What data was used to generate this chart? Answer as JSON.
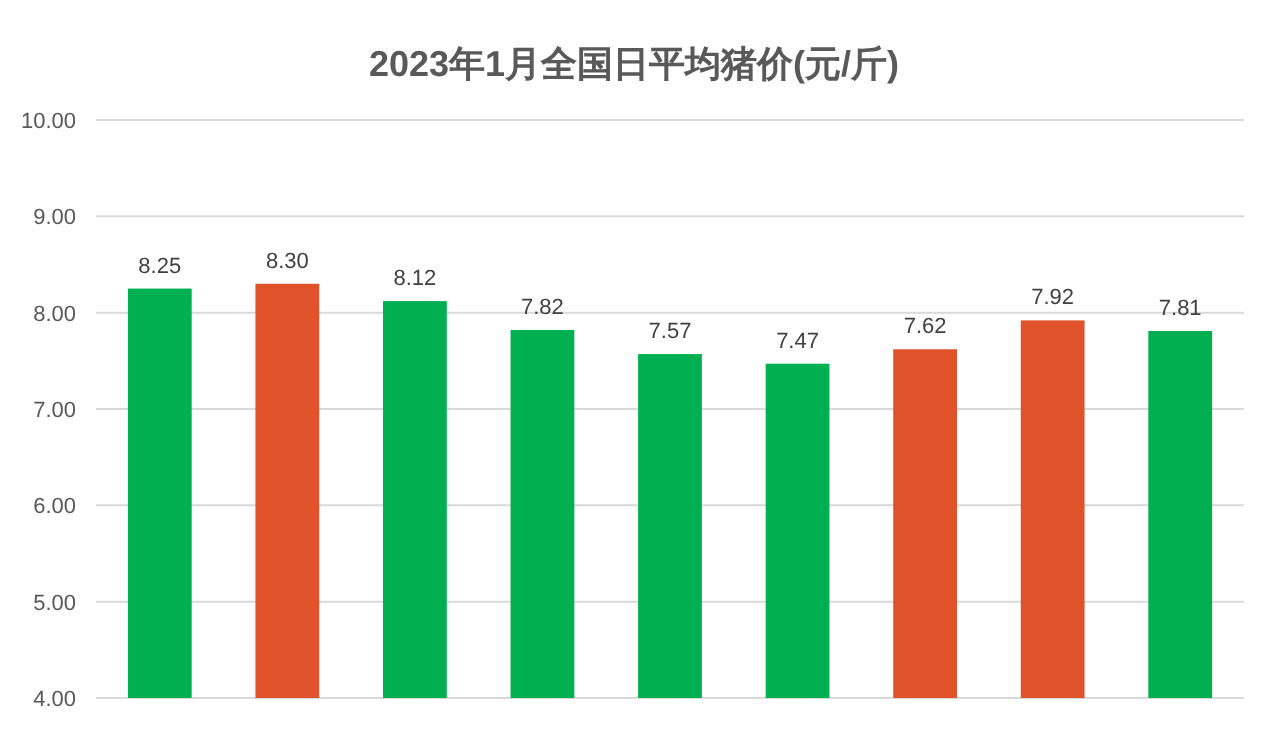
{
  "chart_data": {
    "type": "bar",
    "title": "2023年1月全国日平均猪价(元/斤)",
    "categories": [
      null,
      null,
      null,
      null,
      null,
      null,
      null,
      null,
      null
    ],
    "values": [
      8.25,
      8.3,
      8.12,
      7.82,
      7.57,
      7.47,
      7.62,
      7.92,
      7.81
    ],
    "value_labels": [
      "8.25",
      "8.30",
      "8.12",
      "7.82",
      "7.57",
      "7.47",
      "7.62",
      "7.92",
      "7.81"
    ],
    "colors": [
      "#00b050",
      "#e0522a",
      "#00b050",
      "#00b050",
      "#00b050",
      "#00b050",
      "#e0522a",
      "#e0522a",
      "#00b050"
    ],
    "ylim": [
      4,
      10
    ],
    "yticks": [
      {
        "value": 4,
        "label": "4.00"
      },
      {
        "value": 5,
        "label": "5.00"
      },
      {
        "value": 6,
        "label": "6.00"
      },
      {
        "value": 7,
        "label": "7.00"
      },
      {
        "value": 8,
        "label": "8.00"
      },
      {
        "value": 9,
        "label": "9.00"
      },
      {
        "value": 10,
        "label": "10.00"
      }
    ],
    "grid": "y"
  }
}
